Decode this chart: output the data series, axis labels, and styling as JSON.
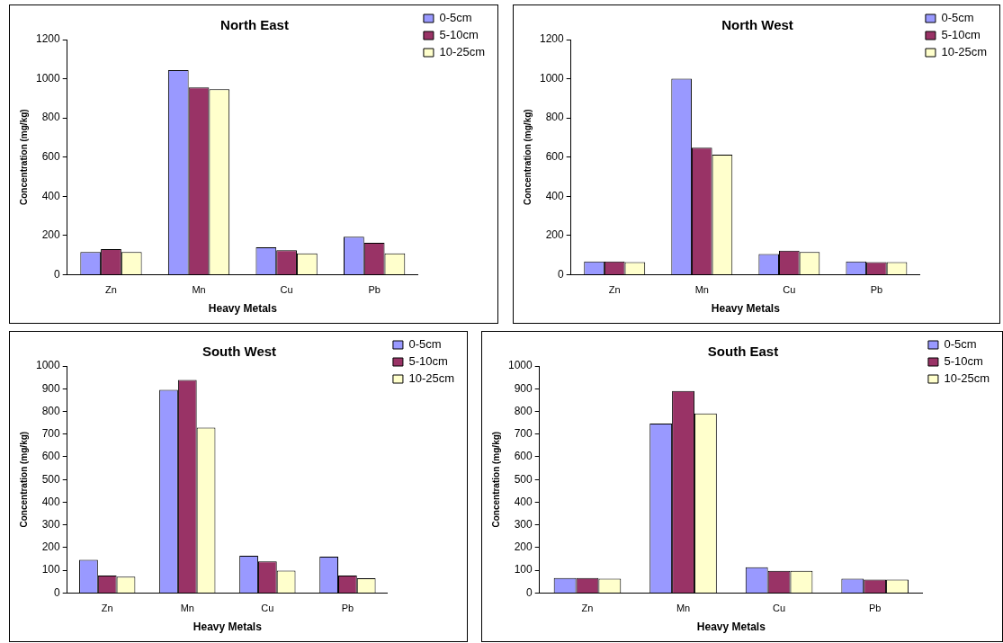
{
  "chart_data": [
    {
      "type": "bar",
      "title": "North East",
      "xlabel": "Heavy Metals",
      "ylabel": "Concentration (mg/kg)",
      "categories": [
        "Zn",
        "Mn",
        "Cu",
        "Pb"
      ],
      "ylim": [
        0,
        1200
      ],
      "yticks": [
        0,
        200,
        400,
        600,
        800,
        1000,
        1200
      ],
      "grid": false,
      "legend": "top right",
      "series": [
        {
          "name": "0-5cm",
          "color": "#9999ff",
          "values": [
            115,
            1044,
            140,
            194
          ]
        },
        {
          "name": "5-10cm",
          "color": "#993366",
          "values": [
            130,
            955,
            125,
            163
          ]
        },
        {
          "name": "10-25cm",
          "color": "#ffffcc",
          "values": [
            115,
            946,
            109,
            109
          ]
        }
      ]
    },
    {
      "type": "bar",
      "title": "North West",
      "xlabel": "Heavy Metals",
      "ylabel": "Concentration (mg/kg)",
      "categories": [
        "Zn",
        "Mn",
        "Cu",
        "Pb"
      ],
      "ylim": [
        0,
        1200
      ],
      "yticks": [
        0,
        200,
        400,
        600,
        800,
        1000,
        1200
      ],
      "grid": false,
      "legend": "top right",
      "series": [
        {
          "name": "0-5cm",
          "color": "#9999ff",
          "values": [
            67,
            1000,
            105,
            67
          ]
        },
        {
          "name": "5-10cm",
          "color": "#993366",
          "values": [
            67,
            648,
            122,
            64
          ]
        },
        {
          "name": "10-25cm",
          "color": "#ffffcc",
          "values": [
            64,
            612,
            115,
            64
          ]
        }
      ]
    },
    {
      "type": "bar",
      "title": "South West",
      "xlabel": "Heavy Metals",
      "ylabel": "Concentration (mg/kg)",
      "categories": [
        "Zn",
        "Mn",
        "Cu",
        "Pb"
      ],
      "ylim": [
        0,
        1000
      ],
      "yticks": [
        0,
        100,
        200,
        300,
        400,
        500,
        600,
        700,
        800,
        900,
        1000
      ],
      "grid": false,
      "legend": "top right",
      "series": [
        {
          "name": "0-5cm",
          "color": "#9999ff",
          "values": [
            146,
            895,
            164,
            160
          ]
        },
        {
          "name": "5-10cm",
          "color": "#993366",
          "values": [
            77,
            939,
            139,
            77
          ]
        },
        {
          "name": "10-25cm",
          "color": "#ffffcc",
          "values": [
            72,
            729,
            99,
            65
          ]
        }
      ]
    },
    {
      "type": "bar",
      "title": "South East",
      "xlabel": "Heavy Metals",
      "ylabel": "Concentration (mg/kg)",
      "categories": [
        "Zn",
        "Mn",
        "Cu",
        "Pb"
      ],
      "ylim": [
        0,
        1000
      ],
      "yticks": [
        0,
        100,
        200,
        300,
        400,
        500,
        600,
        700,
        800,
        900,
        1000
      ],
      "grid": false,
      "legend": "top right",
      "series": [
        {
          "name": "0-5cm",
          "color": "#9999ff",
          "values": [
            66,
            746,
            114,
            63
          ]
        },
        {
          "name": "5-10cm",
          "color": "#993366",
          "values": [
            66,
            890,
            98,
            59
          ]
        },
        {
          "name": "10-25cm",
          "color": "#ffffcc",
          "values": [
            63,
            791,
            98,
            59
          ]
        }
      ]
    }
  ]
}
